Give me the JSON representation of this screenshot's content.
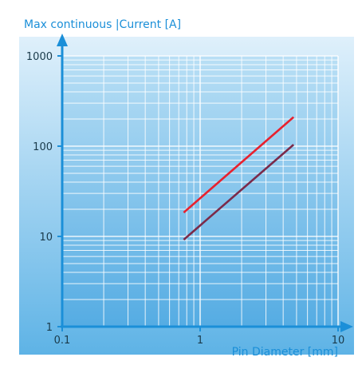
{
  "chart_data": {
    "type": "line",
    "title": "",
    "ylabel": "Max continuous |Current [A]",
    "xlabel": "Pin Diameter [mm]",
    "x_scale": "log",
    "y_scale": "log",
    "xlim": [
      0.1,
      10
    ],
    "ylim": [
      1,
      1000
    ],
    "x_ticks": [
      "0.1",
      "1",
      "10"
    ],
    "y_ticks": [
      "1",
      "10",
      "100",
      "1000"
    ],
    "grid": true,
    "legend": "none",
    "series": [
      {
        "color": "#e8212e",
        "x": [
          0.76,
          4.76
        ],
        "y": [
          18.4,
          210
        ]
      },
      {
        "color": "#7b2a4a",
        "x": [
          0.76,
          4.76
        ],
        "y": [
          9.2,
          104
        ]
      }
    ]
  },
  "colors": {
    "background_top": "#dff0fb",
    "background_bottom": "#5eb3e6",
    "axis": "#1b8fd8",
    "text": "#1b8fd8",
    "tick_text": "#1a3a4a",
    "grid": "#ffffff"
  }
}
